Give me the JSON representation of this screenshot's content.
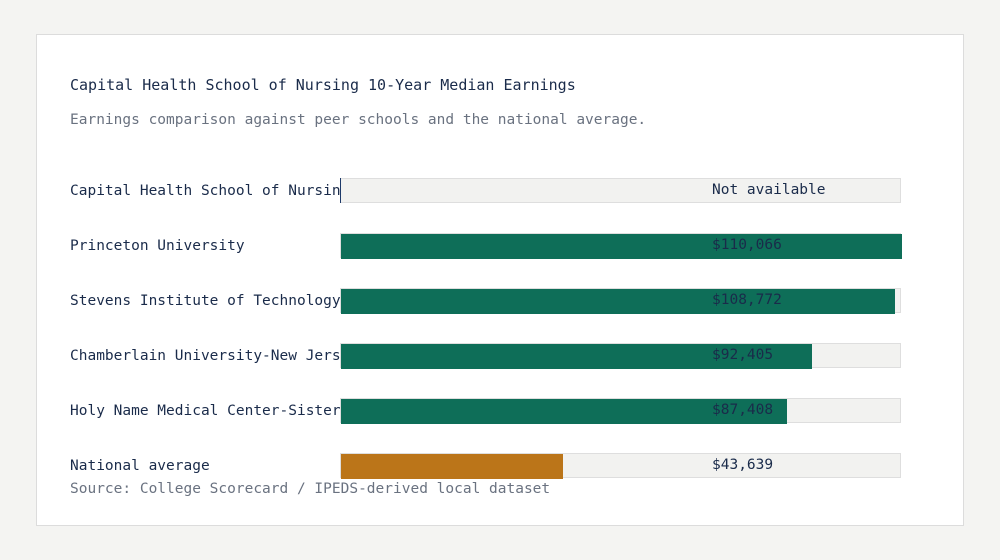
{
  "chart_data": {
    "type": "bar",
    "orientation": "horizontal",
    "title": "Capital Health School of Nursing 10-Year Median Earnings",
    "subtitle": "Earnings comparison against peer schools and the national average.",
    "source": "Source: College Scorecard / IPEDS-derived local dataset",
    "xlim": [
      0,
      110066
    ],
    "categories": [
      "Capital Health School of Nursing",
      "Princeton University",
      "Stevens Institute of Technology",
      "Chamberlain University-New Jersey",
      "Holy Name Medical Center-Sister Claire Tynan School of Nursing",
      "National average"
    ],
    "values": [
      null,
      110066,
      108772,
      92405,
      87408,
      43639
    ],
    "value_labels": [
      "Not available",
      "$110,066",
      "$108,772",
      "$92,405",
      "$87,408",
      "$43,639"
    ],
    "colors": {
      "school": "#0e6e58",
      "national": "#bb7519",
      "focus_marker": "#1e3a6a"
    }
  }
}
